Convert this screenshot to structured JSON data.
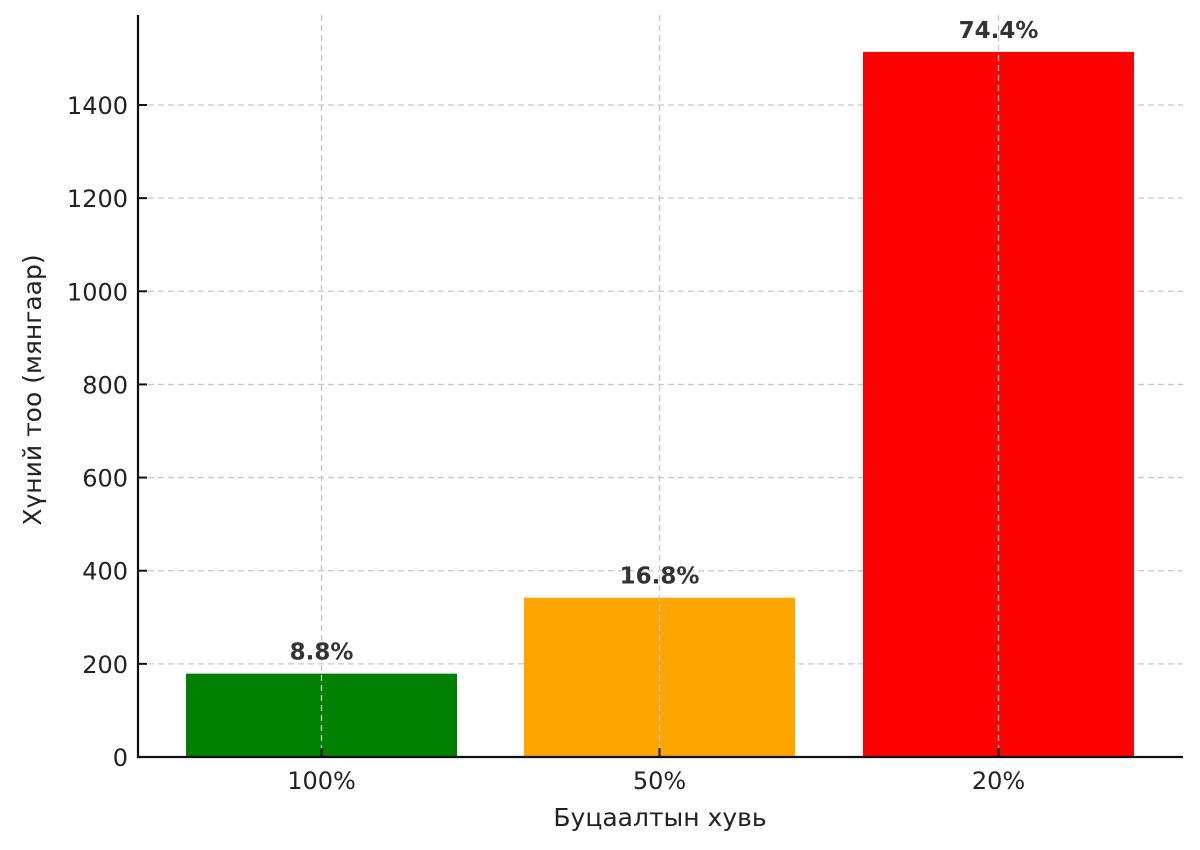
{
  "chart_data": {
    "type": "bar",
    "title": "",
    "xlabel": "Буцаалтын хувь",
    "ylabel": "Хүний тоо (мянгаар)",
    "categories": [
      "100%",
      "50%",
      "20%"
    ],
    "values": [
      179,
      342,
      1514
    ],
    "bar_labels": [
      "8.8%",
      "16.8%",
      "74.4%"
    ],
    "colors": [
      "#008000",
      "#FFA500",
      "#FF0000"
    ],
    "ylim": [
      0,
      1590
    ],
    "yticks": [
      0,
      200,
      400,
      600,
      800,
      1000,
      1200,
      1400
    ],
    "grid": true,
    "legend": null
  }
}
